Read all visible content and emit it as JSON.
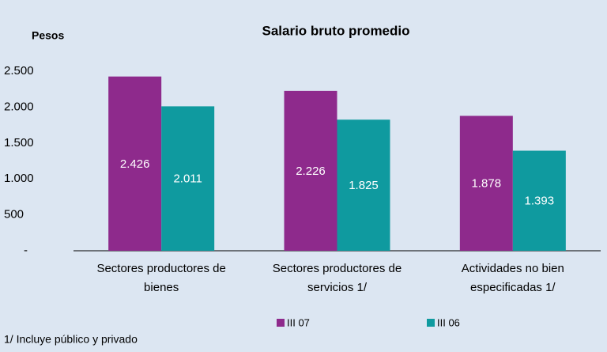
{
  "chart_data": {
    "type": "bar",
    "title": "Salario bruto promedio",
    "y_label": "Pesos",
    "footnote": "1/ Incluye público y privado",
    "categories": [
      "Sectores productores de bienes",
      "Sectores productores de servicios  1/",
      "Actividades no bien especificadas  1/"
    ],
    "series": [
      {
        "name": "III 07",
        "color": "#8e2a8c",
        "values": [
          2426,
          2226,
          1878
        ],
        "value_labels": [
          "2.426",
          "2.226",
          "1.878"
        ]
      },
      {
        "name": "III 06",
        "color": "#0f9a9f",
        "values": [
          2011,
          1825,
          1393
        ],
        "value_labels": [
          "2.011",
          "1.825",
          "1.393"
        ]
      }
    ],
    "ylim": [
      0,
      2500
    ],
    "yticks": [
      {
        "value": 0,
        "label": "-"
      },
      500,
      {
        "value": 1000,
        "label": "1.000"
      },
      {
        "value": 1500,
        "label": "1.500"
      },
      {
        "value": 2000,
        "label": "2.000"
      },
      {
        "value": 2500,
        "label": "2.500"
      }
    ],
    "legend": "bottom"
  }
}
